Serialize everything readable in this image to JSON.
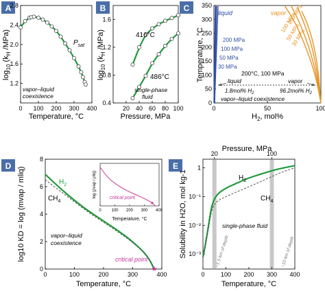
{
  "colors": {
    "panel_badge": "#4a6ea8",
    "green": "#1e9a3c",
    "orange": "#e89425",
    "blue": "#3050a8",
    "magenta": "#c8389a",
    "gray_band": "#c8c8c8",
    "dashed": "#555555"
  },
  "chart_data": [
    {
      "id": "A",
      "type": "line",
      "badge": "A",
      "xlabel": "Temperature, °C",
      "ylabel_pre": "log",
      "ylabel_sub": "10",
      "ylabel_mid": " (k",
      "ylabel_sub2": "H",
      "ylabel_post": " /MPa)",
      "xlim": [
        0,
        400
      ],
      "ylim": [
        0.8,
        2.8
      ],
      "xticks": [
        "0",
        "100",
        "200",
        "300",
        "400"
      ],
      "yticks": [
        "1.2",
        "1.6",
        "2.0",
        "2.4",
        "2.8"
      ],
      "annotation_psat": "P",
      "annotation_psat_sub": "sat",
      "annotation_region": [
        "vapor–liquid",
        "coexistence"
      ],
      "series": [
        {
          "x": [
            0,
            25,
            50,
            75,
            100,
            125,
            150,
            175,
            200,
            225,
            250,
            275,
            300,
            325,
            340,
            350,
            360,
            365,
            370
          ],
          "y": [
            2.35,
            2.48,
            2.55,
            2.57,
            2.55,
            2.51,
            2.45,
            2.37,
            2.28,
            2.16,
            2.02,
            1.88,
            1.72,
            1.55,
            1.43,
            1.33,
            1.23,
            1.18,
            1.14
          ]
        }
      ],
      "points": {
        "x": [
          0,
          25,
          50,
          60,
          75,
          100,
          125,
          150,
          175,
          200,
          225,
          250,
          275,
          300,
          325,
          340,
          350,
          360,
          365
        ],
        "y": [
          2.35,
          2.48,
          2.55,
          2.56,
          2.57,
          2.55,
          2.51,
          2.45,
          2.37,
          2.28,
          2.16,
          2.02,
          1.88,
          1.72,
          1.55,
          1.43,
          1.33,
          1.23,
          1.18
        ]
      }
    },
    {
      "id": "B",
      "type": "line",
      "badge": "B",
      "xlabel": "Pressure, MPa",
      "ylabel_pre": "log",
      "ylabel_sub": "10",
      "ylabel_mid": " (k",
      "ylabel_sub2": "H",
      "ylabel_post": " /MPa)",
      "xlim": [
        0,
        100
      ],
      "ylim": [
        0.4,
        1.8
      ],
      "xticks": [
        "20",
        "40",
        "60",
        "80",
        "100"
      ],
      "yticks": [
        "0.4",
        "0.8",
        "1.2",
        "1.6"
      ],
      "annotation_region": [
        "single-phase",
        "fluid"
      ],
      "series": [
        {
          "name": "416°C",
          "x": [
            30,
            40,
            50,
            60,
            70,
            80,
            90,
            100
          ],
          "y": [
            0.95,
            1.2,
            1.38,
            1.47,
            1.53,
            1.58,
            1.62,
            1.66
          ]
        },
        {
          "name": "486°C",
          "x": [
            30,
            40,
            50,
            60,
            70,
            80,
            90,
            100
          ],
          "y": [
            0.47,
            0.63,
            0.79,
            0.97,
            1.1,
            1.22,
            1.32,
            1.4
          ]
        }
      ]
    },
    {
      "id": "C",
      "type": "line",
      "badge": "C",
      "xlabel_pre": "H",
      "xlabel_sub": "2",
      "xlabel_post": ", mol%",
      "ylabel": "Temperature, °C",
      "xlim": [
        0,
        100
      ],
      "ylim": [
        0,
        350
      ],
      "xticks": [
        "0",
        "50",
        "100"
      ],
      "yticks": [
        "0",
        "50",
        "100",
        "150",
        "200",
        "250",
        "300",
        "350"
      ],
      "label_liquid_top": "liquid",
      "label_vapor_top": "vapor",
      "pressures_vapor": [
        "30 MPa",
        "50 MPa",
        "100 MPa",
        "200 MPa"
      ],
      "pressures_liquid": [
        "200 MPa",
        "100 MPa",
        "50 MPa",
        "30 MPa"
      ],
      "tie_line_title": "200°C, 100 MPa",
      "tie_liquid": "liquid",
      "tie_vapor": "vapor",
      "tie_liquid_value": "1.8mol% H",
      "tie_vapor_value": "96.2mol% H",
      "tie_sub": "2",
      "annotation_region": "vapor–liquid coexistence",
      "series": [
        {
          "name": "30 MPa vapor",
          "x": [
            100,
            98,
            94,
            88,
            82
          ],
          "y": [
            0,
            100,
            200,
            280,
            330
          ]
        },
        {
          "name": "50 MPa vapor",
          "x": [
            100,
            97,
            92,
            85,
            78
          ],
          "y": [
            0,
            100,
            200,
            280,
            345
          ]
        },
        {
          "name": "100 MPa vapor",
          "x": [
            100,
            96,
            89,
            80,
            72
          ],
          "y": [
            0,
            100,
            200,
            290,
            350
          ]
        },
        {
          "name": "200 MPa vapor",
          "x": [
            100,
            95,
            86,
            76,
            66
          ],
          "y": [
            0,
            100,
            200,
            290,
            350
          ]
        }
      ]
    },
    {
      "id": "D",
      "type": "line",
      "badge": "D",
      "xlabel": "Temperature, °C",
      "ylabel": "log10 KD = log (mvap / mliq)",
      "xlim": [
        0,
        400
      ],
      "ylim": [
        0,
        8
      ],
      "xticks": [
        "0",
        "100",
        "200",
        "300",
        "400"
      ],
      "yticks": [
        "0",
        "2",
        "4",
        "6",
        "8"
      ],
      "legend_h2": "H",
      "legend_h2_sub": "2",
      "legend_ch4": "CH",
      "legend_ch4_sub": "4",
      "annotation_region": [
        "vapor–liquid",
        "coexistence"
      ],
      "critical_point_label": "critical point",
      "series": [
        {
          "name": "H2",
          "x": [
            0,
            50,
            100,
            150,
            200,
            250,
            300,
            350,
            374
          ],
          "y": [
            6.9,
            5.9,
            5.0,
            4.2,
            3.5,
            2.8,
            2.0,
            1.0,
            0
          ]
        },
        {
          "name": "CH4",
          "x": [
            0,
            50,
            100,
            150,
            200,
            250,
            300,
            350,
            374
          ],
          "y": [
            6.5,
            5.7,
            4.9,
            4.1,
            3.4,
            2.7,
            1.95,
            0.98,
            0
          ]
        }
      ],
      "inset": {
        "xlabel": "Temperature, °C",
        "ylabel": "log (ρvap / ρliq)",
        "xticks": [
          "0",
          "100",
          "200",
          "300",
          "400"
        ],
        "critical_point_label": "critical point",
        "series": {
          "x": [
            0,
            50,
            100,
            150,
            200,
            250,
            300,
            350,
            374
          ],
          "y": [
            5.0,
            3.7,
            2.9,
            2.3,
            1.8,
            1.4,
            0.95,
            0.45,
            0
          ]
        }
      }
    },
    {
      "id": "E",
      "type": "line",
      "badge": "E",
      "xlabel": "Temperature, °C",
      "top_xlabel": "Pressure, MPa",
      "top_xticks": [
        "20",
        "100"
      ],
      "ylabel": "Solubility in H2O, mol kg-1",
      "xlim": [
        0,
        400
      ],
      "xticks": [
        "0",
        "100",
        "200",
        "300",
        "400"
      ],
      "yticks": [
        "10⁻³",
        "10⁻²",
        "10⁻¹",
        "1"
      ],
      "yscale": "log",
      "legend_h2": "H",
      "legend_h2_sub": "2",
      "legend_ch4": "CH",
      "legend_ch4_sub": "4",
      "annotation_region": "single-phase  fluid",
      "band_1_label": "~1.5 km of depth",
      "band_2_label": "~10 km of depth",
      "series": [
        {
          "name": "H2",
          "x": [
            0,
            10,
            20,
            30,
            40,
            60,
            100,
            150,
            200,
            250,
            300,
            350,
            400
          ],
          "y": [
            0.0008,
            0.002,
            0.006,
            0.02,
            0.055,
            0.12,
            0.2,
            0.3,
            0.45,
            0.6,
            0.8,
            1.0,
            1.2
          ]
        },
        {
          "name": "CH4",
          "x": [
            0,
            10,
            20,
            30,
            40,
            60,
            100,
            150,
            200,
            250,
            300,
            350,
            400
          ],
          "y": [
            0.0007,
            0.0017,
            0.005,
            0.015,
            0.04,
            0.07,
            0.1,
            0.15,
            0.22,
            0.33,
            0.5,
            0.75,
            1.0
          ]
        }
      ]
    }
  ]
}
